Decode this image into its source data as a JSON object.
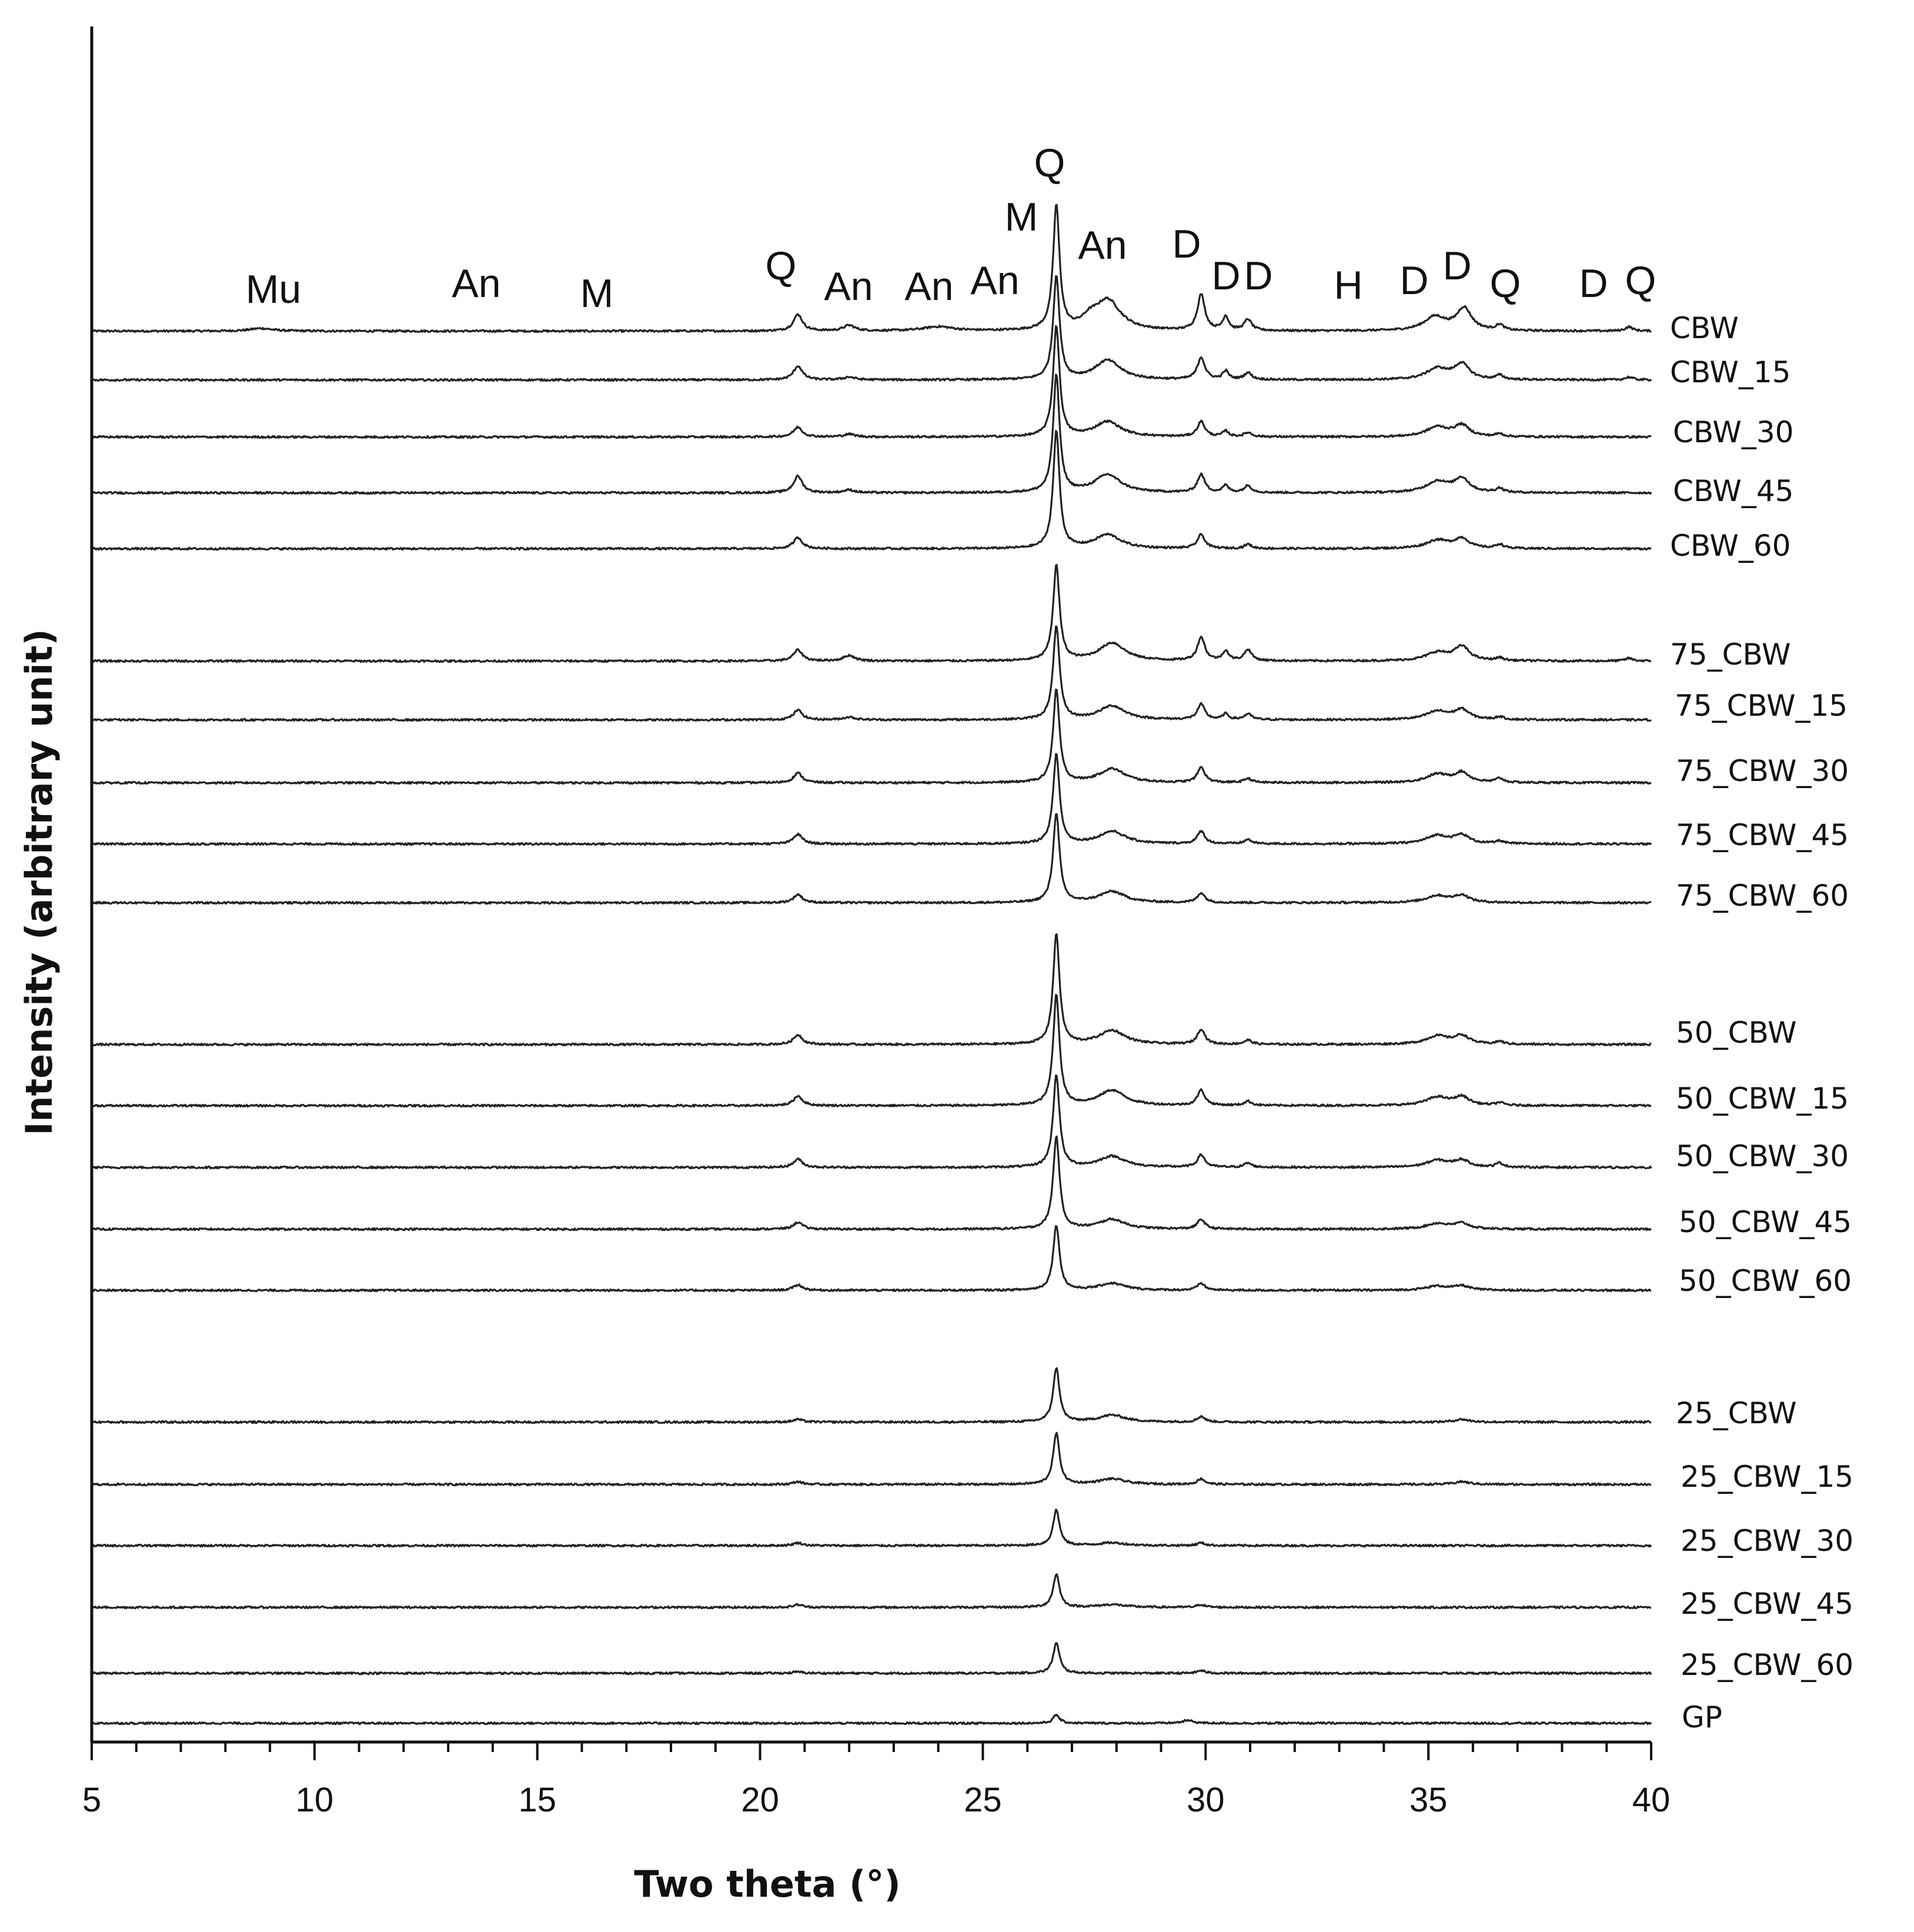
{
  "chart_data": {
    "type": "line",
    "title": "",
    "xlabel": "Two theta (°)",
    "ylabel": "Intensity (arbitrary unit)",
    "xlim": [
      5,
      40
    ],
    "xticks": [
      5,
      10,
      15,
      20,
      25,
      30,
      35,
      40
    ],
    "grid": false,
    "legend": "none",
    "peak_annotations": [
      {
        "label": "Mu",
        "two_theta": 8.8
      },
      {
        "label": "An",
        "two_theta": 13.8
      },
      {
        "label": "M",
        "two_theta": 16.3
      },
      {
        "label": "Q",
        "two_theta": 20.5
      },
      {
        "label": "An",
        "two_theta": 22.0
      },
      {
        "label": "An",
        "two_theta": 23.7
      },
      {
        "label": "An",
        "two_theta": 25.4
      },
      {
        "label": "M",
        "two_theta": 26.1
      },
      {
        "label": "Q",
        "two_theta": 26.6
      },
      {
        "label": "An",
        "two_theta": 27.9
      },
      {
        "label": "D",
        "two_theta": 29.7
      },
      {
        "label": "D",
        "two_theta": 30.5
      },
      {
        "label": "D",
        "two_theta": 31.1
      },
      {
        "label": "H",
        "two_theta": 33.0
      },
      {
        "label": "D",
        "two_theta": 34.8
      },
      {
        "label": "D",
        "two_theta": 35.6
      },
      {
        "label": "Q",
        "two_theta": 36.7
      },
      {
        "label": "D",
        "two_theta": 38.5
      },
      {
        "label": "Q",
        "two_theta": 39.6
      }
    ],
    "series": [
      {
        "name": "CBW",
        "offset": 100,
        "q": 90,
        "peaks": [
          [
            8.8,
            2,
            0.3
          ],
          [
            20.85,
            12,
            0.12
          ],
          [
            22.0,
            4,
            0.15
          ],
          [
            24.0,
            3,
            0.4
          ],
          [
            27.8,
            22,
            0.35
          ],
          [
            27.4,
            6,
            0.2
          ],
          [
            29.9,
            26,
            0.1
          ],
          [
            30.45,
            10,
            0.08
          ],
          [
            30.95,
            8,
            0.1
          ],
          [
            35.15,
            10,
            0.3
          ],
          [
            35.8,
            16,
            0.2
          ],
          [
            36.6,
            4,
            0.1
          ],
          [
            39.5,
            3,
            0.1
          ]
        ]
      },
      {
        "name": "CBW_15",
        "offset": 92,
        "q": 75,
        "peaks": [
          [
            20.85,
            10,
            0.12
          ],
          [
            22.0,
            2,
            0.15
          ],
          [
            27.8,
            14,
            0.35
          ],
          [
            29.9,
            16,
            0.1
          ],
          [
            30.45,
            6,
            0.08
          ],
          [
            30.95,
            5,
            0.1
          ],
          [
            35.2,
            8,
            0.3
          ],
          [
            35.75,
            11,
            0.2
          ],
          [
            36.6,
            3,
            0.1
          ],
          [
            39.5,
            2,
            0.1
          ]
        ]
      },
      {
        "name": "CBW_30",
        "offset": 82,
        "q": 80,
        "peaks": [
          [
            20.85,
            7,
            0.12
          ],
          [
            22.0,
            2,
            0.15
          ],
          [
            27.8,
            11,
            0.35
          ],
          [
            29.9,
            11,
            0.1
          ],
          [
            30.45,
            4,
            0.08
          ],
          [
            30.95,
            3,
            0.1
          ],
          [
            35.2,
            7,
            0.3
          ],
          [
            35.75,
            8,
            0.2
          ],
          [
            36.6,
            2,
            0.1
          ]
        ]
      },
      {
        "name": "CBW_45",
        "offset": 73,
        "q": 85,
        "peaks": [
          [
            20.85,
            12,
            0.12
          ],
          [
            22.0,
            2,
            0.15
          ],
          [
            27.8,
            13,
            0.35
          ],
          [
            29.9,
            13,
            0.1
          ],
          [
            30.45,
            5,
            0.08
          ],
          [
            30.95,
            5,
            0.1
          ],
          [
            35.2,
            8,
            0.3
          ],
          [
            35.75,
            10,
            0.2
          ],
          [
            36.6,
            3,
            0.1
          ]
        ]
      },
      {
        "name": "CBW_60",
        "offset": 64,
        "q": 85,
        "peaks": [
          [
            20.85,
            8,
            0.12
          ],
          [
            27.8,
            10,
            0.35
          ],
          [
            29.9,
            10,
            0.1
          ],
          [
            30.95,
            3,
            0.1
          ],
          [
            35.2,
            6,
            0.3
          ],
          [
            35.75,
            7,
            0.2
          ],
          [
            36.6,
            3,
            0.1
          ]
        ]
      },
      {
        "name": "75_CBW",
        "offset": 81,
        "q": 69,
        "peaks": [
          [
            20.85,
            8,
            0.12
          ],
          [
            22.0,
            4,
            0.15
          ],
          [
            27.9,
            13,
            0.35
          ],
          [
            29.9,
            17,
            0.1
          ],
          [
            30.45,
            7,
            0.08
          ],
          [
            30.95,
            8,
            0.1
          ],
          [
            35.2,
            6,
            0.3
          ],
          [
            35.75,
            10,
            0.2
          ],
          [
            36.6,
            2,
            0.1
          ],
          [
            39.5,
            2,
            0.1
          ]
        ]
      },
      {
        "name": "75_CBW_15",
        "offset": 71,
        "q": 68,
        "peaks": [
          [
            20.85,
            7,
            0.12
          ],
          [
            22.0,
            2,
            0.15
          ],
          [
            27.9,
            10,
            0.35
          ],
          [
            29.9,
            11,
            0.1
          ],
          [
            30.45,
            4,
            0.08
          ],
          [
            30.95,
            4,
            0.1
          ],
          [
            35.2,
            6,
            0.3
          ],
          [
            35.75,
            7,
            0.2
          ],
          [
            36.6,
            2,
            0.1
          ]
        ]
      },
      {
        "name": "75_CBW_30",
        "offset": 61,
        "q": 67,
        "peaks": [
          [
            20.85,
            7,
            0.12
          ],
          [
            27.9,
            10,
            0.35
          ],
          [
            29.9,
            11,
            0.1
          ],
          [
            30.95,
            3,
            0.1
          ],
          [
            35.2,
            6,
            0.3
          ],
          [
            35.75,
            7,
            0.2
          ],
          [
            36.6,
            3,
            0.1
          ]
        ]
      },
      {
        "name": "75_CBW_45",
        "offset": 51,
        "q": 65,
        "peaks": [
          [
            20.85,
            7,
            0.12
          ],
          [
            27.9,
            9,
            0.35
          ],
          [
            29.9,
            9,
            0.1
          ],
          [
            30.95,
            3,
            0.1
          ],
          [
            35.2,
            6,
            0.3
          ],
          [
            35.75,
            6,
            0.2
          ],
          [
            36.6,
            2,
            0.1
          ]
        ]
      },
      {
        "name": "75_CBW_60",
        "offset": 42,
        "q": 65,
        "peaks": [
          [
            20.85,
            6,
            0.12
          ],
          [
            27.9,
            8,
            0.35
          ],
          [
            29.9,
            7,
            0.1
          ],
          [
            35.2,
            5,
            0.3
          ],
          [
            35.75,
            5,
            0.2
          ]
        ]
      },
      {
        "name": "50_CBW",
        "offset": 83,
        "q": 80,
        "peaks": [
          [
            20.85,
            7,
            0.12
          ],
          [
            27.9,
            10,
            0.35
          ],
          [
            29.9,
            11,
            0.1
          ],
          [
            30.95,
            3,
            0.1
          ],
          [
            35.2,
            6,
            0.3
          ],
          [
            35.75,
            6,
            0.2
          ],
          [
            36.6,
            2,
            0.1
          ]
        ]
      },
      {
        "name": "50_CBW_15",
        "offset": 74,
        "q": 80,
        "peaks": [
          [
            20.85,
            7,
            0.12
          ],
          [
            27.9,
            11,
            0.35
          ],
          [
            29.9,
            11,
            0.1
          ],
          [
            30.95,
            3,
            0.1
          ],
          [
            35.2,
            6,
            0.3
          ],
          [
            35.75,
            6,
            0.2
          ],
          [
            36.6,
            2,
            0.1
          ]
        ]
      },
      {
        "name": "50_CBW_30",
        "offset": 64,
        "q": 67,
        "peaks": [
          [
            20.85,
            6,
            0.12
          ],
          [
            27.9,
            8,
            0.35
          ],
          [
            29.9,
            9,
            0.1
          ],
          [
            30.95,
            3,
            0.1
          ],
          [
            35.2,
            5,
            0.3
          ],
          [
            35.75,
            5,
            0.2
          ],
          [
            36.6,
            3,
            0.1
          ]
        ]
      },
      {
        "name": "50_CBW_45",
        "offset": 55,
        "q": 67,
        "peaks": [
          [
            20.85,
            5,
            0.12
          ],
          [
            27.9,
            7,
            0.35
          ],
          [
            29.9,
            7,
            0.1
          ],
          [
            35.2,
            4,
            0.3
          ],
          [
            35.75,
            4,
            0.2
          ]
        ]
      },
      {
        "name": "50_CBW_60",
        "offset": 46,
        "q": 47,
        "peaks": [
          [
            20.85,
            4,
            0.12
          ],
          [
            27.9,
            5,
            0.35
          ],
          [
            29.9,
            5,
            0.1
          ],
          [
            35.2,
            3,
            0.3
          ],
          [
            35.75,
            3,
            0.2
          ]
        ]
      },
      {
        "name": "25_CBW",
        "offset": 46,
        "q": 39,
        "peaks": [
          [
            20.85,
            2,
            0.12
          ],
          [
            27.9,
            5,
            0.35
          ],
          [
            29.9,
            4,
            0.1
          ],
          [
            35.75,
            2,
            0.2
          ]
        ]
      },
      {
        "name": "25_CBW_15",
        "offset": 36,
        "q": 37,
        "peaks": [
          [
            20.85,
            2,
            0.12
          ],
          [
            27.9,
            4,
            0.35
          ],
          [
            29.9,
            4,
            0.1
          ],
          [
            35.75,
            2,
            0.2
          ]
        ]
      },
      {
        "name": "25_CBW_30",
        "offset": 26,
        "q": 26,
        "peaks": [
          [
            20.85,
            2,
            0.12
          ],
          [
            27.9,
            2,
            0.35
          ],
          [
            29.9,
            2,
            0.1
          ]
        ]
      },
      {
        "name": "25_CBW_45",
        "offset": 16,
        "q": 24,
        "peaks": [
          [
            20.85,
            2,
            0.12
          ],
          [
            27.9,
            2,
            0.35
          ],
          [
            29.9,
            2,
            0.1
          ]
        ]
      },
      {
        "name": "25_CBW_60",
        "offset": 6,
        "q": 22,
        "peaks": [
          [
            20.85,
            1,
            0.12
          ],
          [
            29.9,
            2,
            0.1
          ]
        ]
      },
      {
        "name": "GP",
        "offset": 0,
        "q": 6,
        "peaks": [
          [
            29.6,
            2,
            0.15
          ]
        ]
      }
    ]
  }
}
